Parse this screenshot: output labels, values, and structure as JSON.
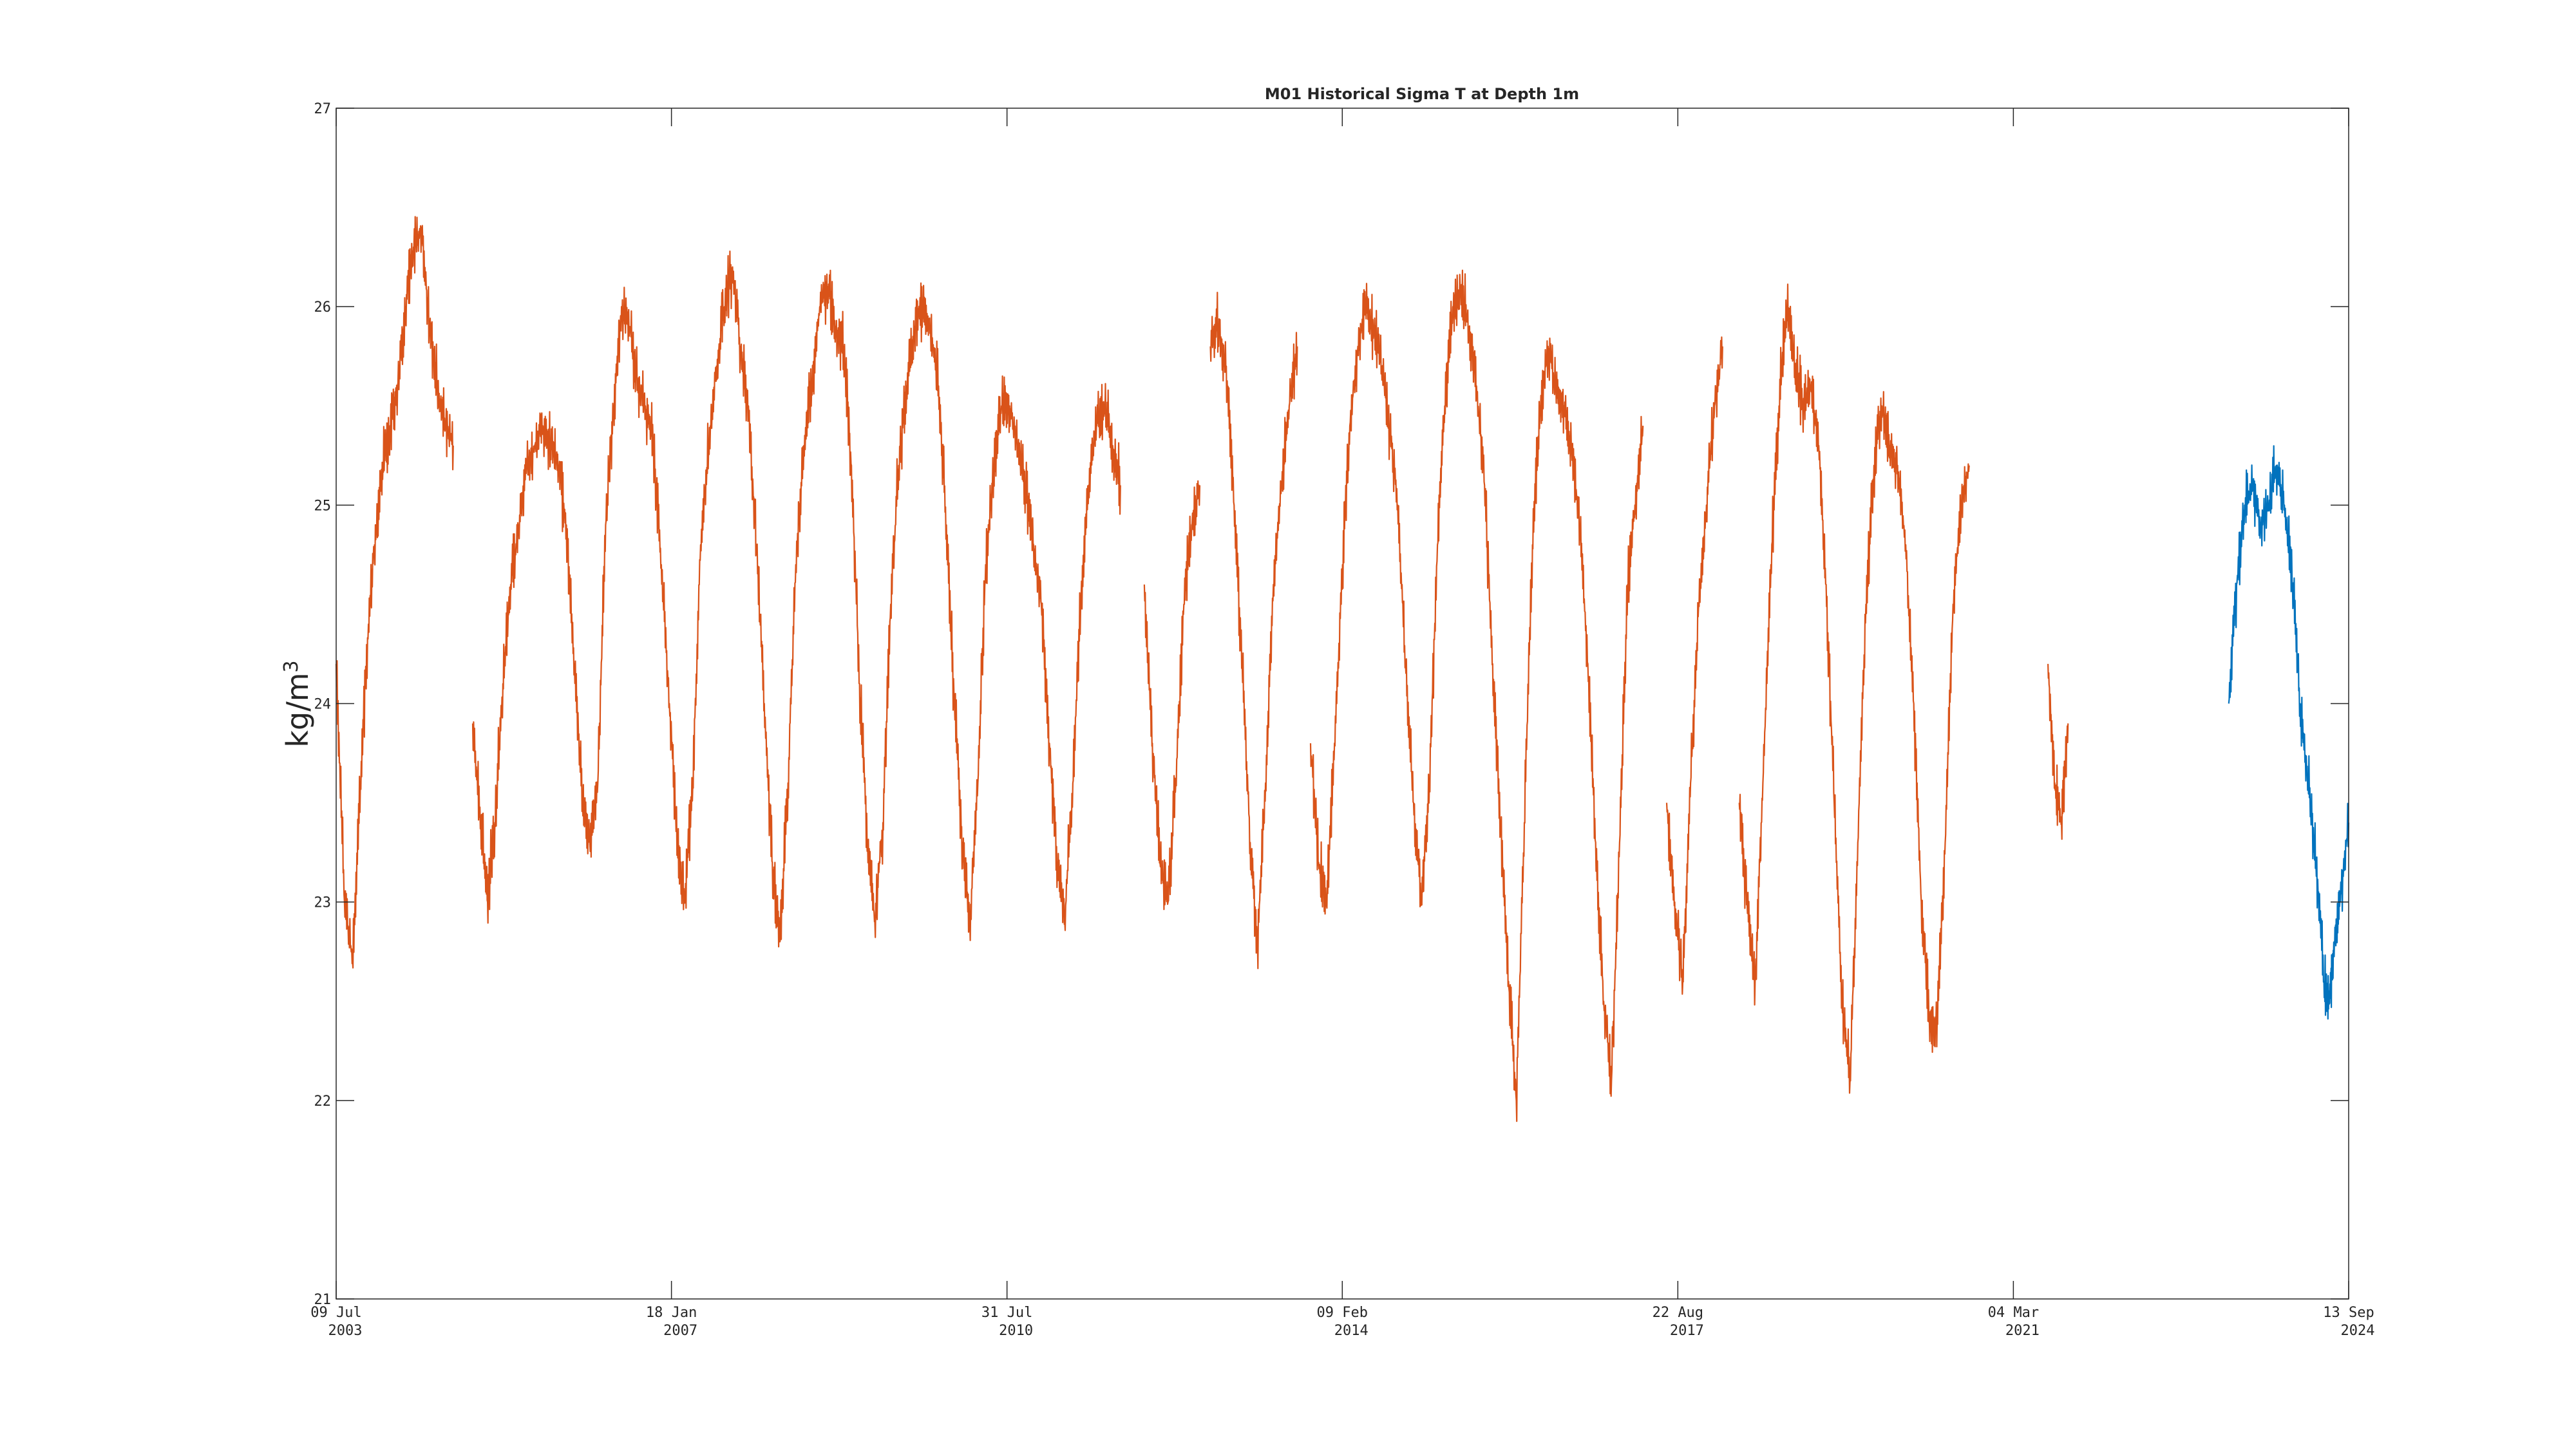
{
  "chart_data": {
    "type": "line",
    "title": "M01 Historical Sigma T at Depth 1m",
    "ylabel": "kg/m",
    "ylabel_superscript": "3",
    "ylim": [
      21,
      27
    ],
    "yticks": [
      21,
      22,
      23,
      24,
      25,
      26,
      27
    ],
    "xlim": [
      "2003-07-09",
      "2024-09-13"
    ],
    "xticks": [
      {
        "date": "2003-07-09",
        "line1": "09 Jul",
        "line2": "2003"
      },
      {
        "date": "2007-01-18",
        "line1": "18 Jan",
        "line2": "2007"
      },
      {
        "date": "2010-07-31",
        "line1": "31 Jul",
        "line2": "2010"
      },
      {
        "date": "2014-02-09",
        "line1": "09 Feb",
        "line2": "2014"
      },
      {
        "date": "2017-08-22",
        "line1": "22 Aug",
        "line2": "2017"
      },
      {
        "date": "2021-03-04",
        "line1": "04 Mar",
        "line2": "2021"
      },
      {
        "date": "2024-09-13",
        "line1": "13 Sep",
        "line2": "2024"
      }
    ],
    "grid": false,
    "series": [
      {
        "color": "#D95319",
        "segments": [
          [
            [
              "2003-07-09",
              24.2
            ],
            [
              "2003-08-10",
              23.0
            ],
            [
              "2003-09-10",
              22.7
            ],
            [
              "2003-10-10",
              23.6
            ],
            [
              "2003-11-10",
              24.4
            ],
            [
              "2003-12-10",
              24.9
            ],
            [
              "2004-01-05",
              25.2
            ],
            [
              "2004-02-01",
              25.4
            ],
            [
              "2004-03-01",
              25.6
            ],
            [
              "2004-04-01",
              26.0
            ],
            [
              "2004-05-01",
              26.3
            ],
            [
              "2004-06-01",
              26.4
            ],
            [
              "2004-07-01",
              25.9
            ],
            [
              "2004-08-01",
              25.6
            ],
            [
              "2004-09-01",
              25.4
            ],
            [
              "2004-10-01",
              25.3
            ]
          ],
          [
            [
              "2004-12-15",
              23.9
            ],
            [
              "2005-01-15",
              23.4
            ],
            [
              "2005-02-10",
              23.0
            ],
            [
              "2005-03-10",
              23.4
            ],
            [
              "2005-04-10",
              24.1
            ],
            [
              "2005-05-10",
              24.6
            ],
            [
              "2005-06-10",
              24.9
            ],
            [
              "2005-07-10",
              25.2
            ],
            [
              "2005-08-10",
              25.3
            ],
            [
              "2005-09-10",
              25.4
            ],
            [
              "2005-10-10",
              25.3
            ],
            [
              "2005-11-10",
              25.2
            ],
            [
              "2005-12-10",
              24.9
            ],
            [
              "2006-01-10",
              24.2
            ],
            [
              "2006-02-10",
              23.5
            ],
            [
              "2006-03-10",
              23.3
            ],
            [
              "2006-04-10",
              23.6
            ],
            [
              "2006-05-10",
              24.9
            ],
            [
              "2006-06-10",
              25.5
            ],
            [
              "2006-07-10",
              26.0
            ],
            [
              "2006-08-10",
              25.9
            ],
            [
              "2006-09-10",
              25.6
            ],
            [
              "2006-10-10",
              25.5
            ],
            [
              "2006-11-10",
              25.3
            ],
            [
              "2006-12-10",
              24.7
            ],
            [
              "2007-01-10",
              24.0
            ],
            [
              "2007-02-10",
              23.3
            ],
            [
              "2007-03-10",
              23.0
            ],
            [
              "2007-04-10",
              23.6
            ],
            [
              "2007-05-10",
              24.8
            ],
            [
              "2007-06-10",
              25.3
            ],
            [
              "2007-07-10",
              25.7
            ],
            [
              "2007-08-10",
              26.0
            ],
            [
              "2007-09-10",
              26.2
            ],
            [
              "2007-10-10",
              25.8
            ],
            [
              "2007-11-10",
              25.5
            ],
            [
              "2007-12-10",
              24.8
            ],
            [
              "2008-01-10",
              24.0
            ],
            [
              "2008-02-10",
              23.2
            ],
            [
              "2008-03-10",
              22.8
            ],
            [
              "2008-04-10",
              23.6
            ],
            [
              "2008-05-10",
              24.7
            ],
            [
              "2008-06-10",
              25.3
            ],
            [
              "2008-07-10",
              25.6
            ],
            [
              "2008-08-10",
              26.0
            ],
            [
              "2008-09-10",
              26.1
            ],
            [
              "2008-10-10",
              25.9
            ],
            [
              "2008-11-10",
              25.8
            ],
            [
              "2008-12-10",
              25.2
            ],
            [
              "2009-01-10",
              24.1
            ],
            [
              "2009-02-10",
              23.3
            ],
            [
              "2009-03-10",
              22.9
            ],
            [
              "2009-04-10",
              23.4
            ],
            [
              "2009-05-10",
              24.5
            ],
            [
              "2009-06-10",
              25.2
            ],
            [
              "2009-07-10",
              25.6
            ],
            [
              "2009-08-10",
              25.9
            ],
            [
              "2009-09-10",
              26.0
            ],
            [
              "2009-10-10",
              25.9
            ],
            [
              "2009-11-10",
              25.6
            ],
            [
              "2009-12-10",
              24.9
            ],
            [
              "2010-01-10",
              24.0
            ],
            [
              "2010-02-10",
              23.3
            ],
            [
              "2010-03-10",
              22.9
            ],
            [
              "2010-04-10",
              23.6
            ],
            [
              "2010-05-10",
              24.7
            ],
            [
              "2010-06-10",
              25.2
            ],
            [
              "2010-07-10",
              25.5
            ],
            [
              "2010-08-10",
              25.5
            ],
            [
              "2010-09-10",
              25.3
            ],
            [
              "2010-10-10",
              25.1
            ],
            [
              "2010-11-10",
              24.8
            ],
            [
              "2010-12-10",
              24.5
            ],
            [
              "2011-01-10",
              23.8
            ],
            [
              "2011-02-10",
              23.2
            ],
            [
              "2011-03-10",
              22.9
            ],
            [
              "2011-04-10",
              23.6
            ],
            [
              "2011-05-10",
              24.5
            ],
            [
              "2011-06-10",
              25.1
            ],
            [
              "2011-07-10",
              25.4
            ],
            [
              "2011-08-10",
              25.5
            ],
            [
              "2011-09-10",
              25.3
            ],
            [
              "2011-10-10",
              25.1
            ]
          ],
          [
            [
              "2012-01-10",
              24.6
            ],
            [
              "2012-02-10",
              23.8
            ],
            [
              "2012-03-10",
              23.2
            ],
            [
              "2012-04-10",
              23.0
            ],
            [
              "2012-05-10",
              23.6
            ],
            [
              "2012-06-10",
              24.5
            ],
            [
              "2012-07-10",
              24.9
            ],
            [
              "2012-08-10",
              25.1
            ]
          ],
          [
            [
              "2012-09-20",
              25.8
            ],
            [
              "2012-10-20",
              25.9
            ],
            [
              "2012-11-20",
              25.7
            ],
            [
              "2012-12-20",
              25.0
            ],
            [
              "2013-01-20",
              24.2
            ],
            [
              "2013-02-20",
              23.3
            ],
            [
              "2013-03-20",
              22.8
            ],
            [
              "2013-04-20",
              23.6
            ],
            [
              "2013-05-20",
              24.6
            ],
            [
              "2013-06-20",
              25.1
            ],
            [
              "2013-07-20",
              25.5
            ],
            [
              "2013-08-20",
              25.8
            ]
          ],
          [
            [
              "2013-10-10",
              23.8
            ],
            [
              "2013-11-10",
              23.2
            ],
            [
              "2013-12-10",
              23.0
            ],
            [
              "2014-01-10",
              23.8
            ],
            [
              "2014-02-10",
              24.7
            ],
            [
              "2014-03-10",
              25.4
            ],
            [
              "2014-04-10",
              25.8
            ],
            [
              "2014-05-10",
              26.0
            ],
            [
              "2014-06-10",
              25.9
            ],
            [
              "2014-07-10",
              25.7
            ],
            [
              "2014-08-10",
              25.4
            ],
            [
              "2014-09-10",
              25.0
            ],
            [
              "2014-10-10",
              24.2
            ],
            [
              "2014-11-10",
              23.5
            ],
            [
              "2014-12-10",
              23.0
            ],
            [
              "2015-01-10",
              23.6
            ],
            [
              "2015-02-10",
              24.8
            ],
            [
              "2015-03-10",
              25.5
            ],
            [
              "2015-04-10",
              26.0
            ],
            [
              "2015-05-10",
              26.1
            ],
            [
              "2015-06-10",
              25.9
            ],
            [
              "2015-07-10",
              25.6
            ],
            [
              "2015-08-10",
              25.1
            ],
            [
              "2015-09-10",
              24.2
            ],
            [
              "2015-10-10",
              23.4
            ],
            [
              "2015-11-10",
              22.6
            ],
            [
              "2015-12-10",
              22.0
            ],
            [
              "2016-01-10",
              23.4
            ],
            [
              "2016-02-10",
              24.8
            ],
            [
              "2016-03-10",
              25.5
            ],
            [
              "2016-04-10",
              25.8
            ],
            [
              "2016-05-10",
              25.6
            ],
            [
              "2016-06-10",
              25.5
            ],
            [
              "2016-07-10",
              25.3
            ],
            [
              "2016-08-10",
              24.9
            ],
            [
              "2016-09-10",
              24.2
            ],
            [
              "2016-10-10",
              23.3
            ],
            [
              "2016-11-10",
              22.5
            ],
            [
              "2016-12-10",
              22.1
            ],
            [
              "2017-01-10",
              23.3
            ],
            [
              "2017-02-10",
              24.6
            ],
            [
              "2017-03-10",
              25.0
            ],
            [
              "2017-04-10",
              25.4
            ]
          ],
          [
            [
              "2017-07-10",
              23.5
            ],
            [
              "2017-08-10",
              23.0
            ],
            [
              "2017-09-10",
              22.6
            ],
            [
              "2017-10-10",
              23.6
            ],
            [
              "2017-11-10",
              24.5
            ],
            [
              "2017-12-10",
              25.0
            ],
            [
              "2018-01-10",
              25.5
            ],
            [
              "2018-02-10",
              25.8
            ]
          ],
          [
            [
              "2018-04-15",
              23.5
            ],
            [
              "2018-05-15",
              23.0
            ],
            [
              "2018-06-15",
              22.6
            ],
            [
              "2018-07-15",
              23.6
            ],
            [
              "2018-08-15",
              24.7
            ],
            [
              "2018-09-15",
              25.5
            ],
            [
              "2018-10-15",
              26.0
            ],
            [
              "2018-11-15",
              25.7
            ],
            [
              "2018-12-15",
              25.5
            ],
            [
              "2019-01-15",
              25.6
            ],
            [
              "2019-02-15",
              25.3
            ],
            [
              "2019-03-15",
              24.6
            ],
            [
              "2019-04-15",
              23.5
            ],
            [
              "2019-05-15",
              22.5
            ],
            [
              "2019-06-15",
              22.1
            ],
            [
              "2019-07-15",
              23.3
            ],
            [
              "2019-08-15",
              24.5
            ],
            [
              "2019-09-15",
              25.2
            ],
            [
              "2019-10-15",
              25.5
            ],
            [
              "2019-11-15",
              25.3
            ],
            [
              "2019-12-15",
              25.2
            ],
            [
              "2020-01-15",
              24.8
            ],
            [
              "2020-02-15",
              24.0
            ],
            [
              "2020-03-15",
              23.0
            ],
            [
              "2020-04-15",
              22.4
            ],
            [
              "2020-05-15",
              22.4
            ],
            [
              "2020-06-15",
              23.3
            ],
            [
              "2020-07-15",
              24.5
            ],
            [
              "2020-08-15",
              25.0
            ],
            [
              "2020-09-15",
              25.2
            ]
          ],
          [
            [
              "2021-07-15",
              24.2
            ],
            [
              "2021-08-10",
              23.6
            ],
            [
              "2021-09-05",
              23.4
            ],
            [
              "2021-09-30",
              23.9
            ]
          ]
        ]
      },
      {
        "color": "#0072BD",
        "segments": [
          [
            [
              "2023-06-10",
              24.0
            ],
            [
              "2023-07-10",
              24.6
            ],
            [
              "2023-08-10",
              25.0
            ],
            [
              "2023-09-10",
              25.1
            ],
            [
              "2023-10-10",
              24.9
            ],
            [
              "2023-11-10",
              25.0
            ],
            [
              "2023-12-10",
              25.2
            ],
            [
              "2024-01-10",
              25.0
            ],
            [
              "2024-02-10",
              24.6
            ],
            [
              "2024-03-10",
              24.0
            ],
            [
              "2024-04-10",
              23.6
            ],
            [
              "2024-05-10",
              23.2
            ],
            [
              "2024-06-10",
              22.6
            ],
            [
              "2024-07-01",
              22.5
            ],
            [
              "2024-07-20",
              22.8
            ],
            [
              "2024-08-10",
              23.0
            ],
            [
              "2024-09-13",
              23.4
            ]
          ]
        ]
      }
    ]
  }
}
